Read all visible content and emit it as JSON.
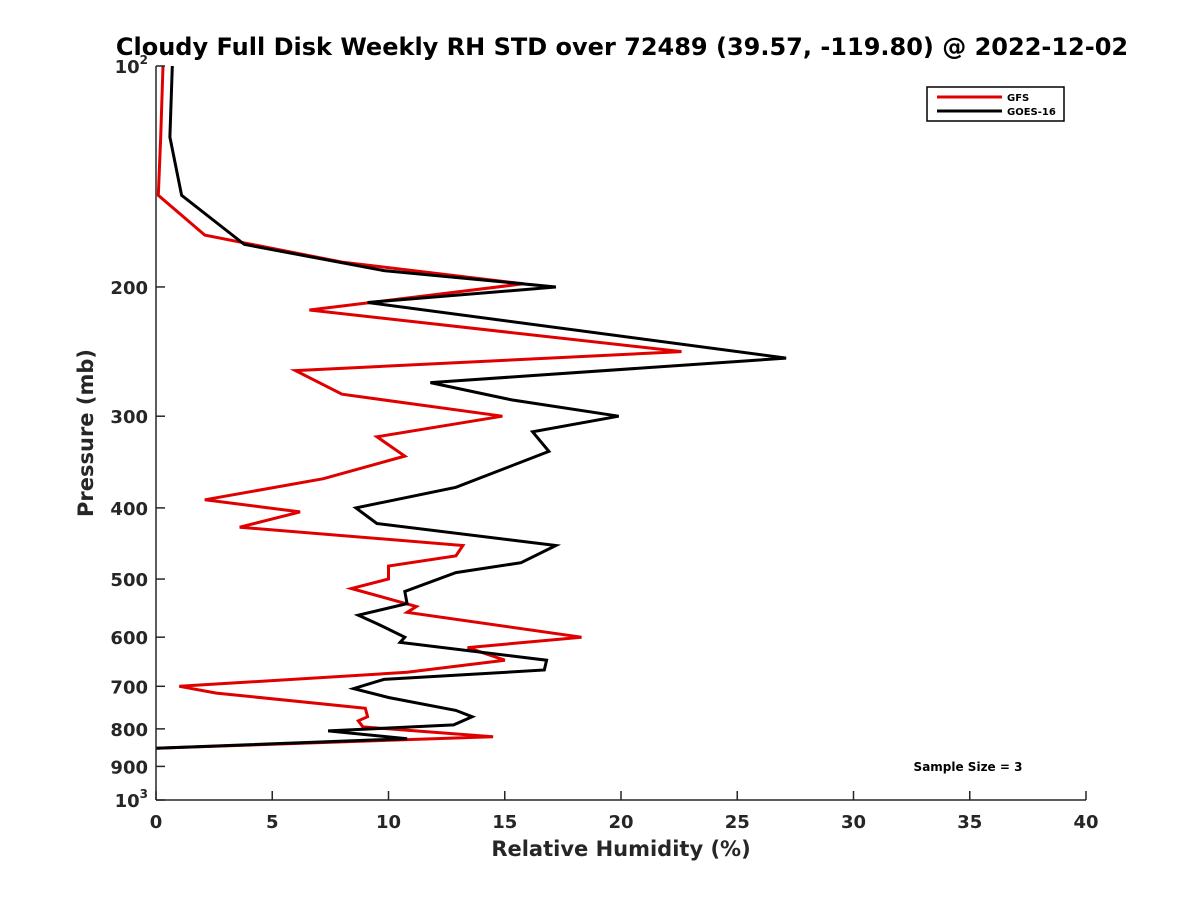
{
  "chart_data": {
    "type": "line",
    "title": "Cloudy Full Disk Weekly RH STD over 72489 (39.57, -119.80) @ 2022-12-02",
    "xlabel": "Relative Humidity (%)",
    "ylabel": "Pressure (mb)",
    "xlim": [
      0,
      40
    ],
    "ylim": [
      100,
      1000
    ],
    "y_scale": "log",
    "y_reversed": true,
    "x_ticks": [
      "0",
      "5",
      "10",
      "15",
      "20",
      "25",
      "30",
      "35",
      "40"
    ],
    "y_ticks": [
      {
        "value": 100,
        "base": "10",
        "exp": "2"
      },
      {
        "value": 200,
        "label": "200"
      },
      {
        "value": 300,
        "label": "300"
      },
      {
        "value": 400,
        "label": "400"
      },
      {
        "value": 500,
        "label": "500"
      },
      {
        "value": 600,
        "label": "600"
      },
      {
        "value": 700,
        "label": "700"
      },
      {
        "value": 800,
        "label": "800"
      },
      {
        "value": 900,
        "label": "900"
      },
      {
        "value": 1000,
        "base": "10",
        "exp": "3"
      }
    ],
    "grid": false,
    "legend_position": "top-right",
    "note": "Sample Size = 3",
    "series": [
      {
        "name": "GFS",
        "color": "#e00000",
        "points": [
          [
            0.3,
            100
          ],
          [
            0.2,
            125
          ],
          [
            0.1,
            150
          ],
          [
            2.1,
            170
          ],
          [
            8,
            185
          ],
          [
            15.8,
            198
          ],
          [
            6.6,
            215
          ],
          [
            22.6,
            245
          ],
          [
            6,
            260
          ],
          [
            8,
            280
          ],
          [
            14.9,
            300
          ],
          [
            9.5,
            320
          ],
          [
            10.7,
            340
          ],
          [
            7.2,
            365
          ],
          [
            2.1,
            390
          ],
          [
            6.2,
            405
          ],
          [
            3.6,
            425
          ],
          [
            13.2,
            450
          ],
          [
            12.9,
            465
          ],
          [
            10,
            480
          ],
          [
            10,
            500
          ],
          [
            8.4,
            515
          ],
          [
            11.2,
            545
          ],
          [
            10.8,
            555
          ],
          [
            18.3,
            600
          ],
          [
            13.4,
            620
          ],
          [
            15,
            645
          ],
          [
            10.8,
            670
          ],
          [
            1,
            700
          ],
          [
            2.6,
            715
          ],
          [
            9,
            750
          ],
          [
            9.1,
            770
          ],
          [
            8.7,
            780
          ],
          [
            8.9,
            795
          ],
          [
            14.5,
            820
          ],
          [
            0,
            850
          ]
        ]
      },
      {
        "name": "GOES-16",
        "color": "#000000",
        "points": [
          [
            0.7,
            100
          ],
          [
            0.6,
            125
          ],
          [
            1.1,
            150
          ],
          [
            3.8,
            175
          ],
          [
            9.8,
            190
          ],
          [
            17.2,
            200
          ],
          [
            9.1,
            210
          ],
          [
            27.1,
            250
          ],
          [
            11.8,
            270
          ],
          [
            15.3,
            285
          ],
          [
            19.9,
            300
          ],
          [
            16.2,
            315
          ],
          [
            16.9,
            335
          ],
          [
            12.9,
            375
          ],
          [
            8.6,
            400
          ],
          [
            9.5,
            420
          ],
          [
            17.2,
            450
          ],
          [
            15.7,
            475
          ],
          [
            12.9,
            490
          ],
          [
            10.7,
            520
          ],
          [
            10.8,
            540
          ],
          [
            8.7,
            560
          ],
          [
            9.5,
            575
          ],
          [
            10.7,
            600
          ],
          [
            10.5,
            610
          ],
          [
            16.8,
            645
          ],
          [
            16.7,
            665
          ],
          [
            9.8,
            685
          ],
          [
            8.5,
            705
          ],
          [
            10,
            725
          ],
          [
            12.9,
            755
          ],
          [
            13.6,
            770
          ],
          [
            12.8,
            790
          ],
          [
            7.4,
            805
          ],
          [
            10.8,
            825
          ],
          [
            0,
            850
          ]
        ]
      }
    ]
  }
}
